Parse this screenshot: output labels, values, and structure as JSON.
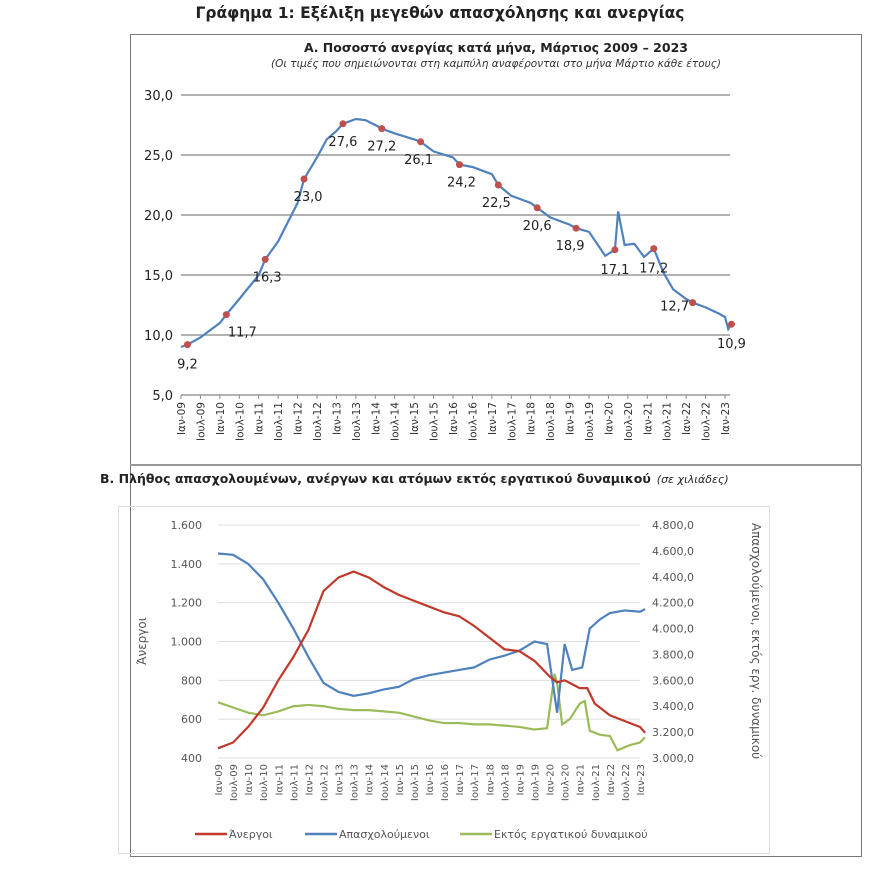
{
  "title": "Γράφημα 1: Εξέλιξη μεγεθών απασχόλησης και ανεργίας",
  "x_tick_labels": [
    "Ιαν-09",
    "Ιουλ-09",
    "Ιαν-10",
    "Ιουλ-10",
    "Ιαν-11",
    "Ιουλ-11",
    "Ιαν-12",
    "Ιουλ-12",
    "Ιαν-13",
    "Ιουλ-13",
    "Ιαν-14",
    "Ιουλ-14",
    "Ιαν-15",
    "Ιουλ-15",
    "Ιαν-16",
    "Ιουλ-16",
    "Ιαν-17",
    "Ιουλ-17",
    "Ιαν-18",
    "Ιουλ-18",
    "Ιαν-19",
    "Ιουλ-19",
    "Ιαν-20",
    "Ιουλ-20",
    "Ιαν-21",
    "Ιουλ-21",
    "Ιαν-22",
    "Ιουλ-22",
    "Ιαν-23"
  ],
  "chart_data": [
    {
      "type": "line",
      "title": "Α. Ποσοστό ανεργίας κατά μήνα, Μάρτιος 2009 – 2023",
      "subtitle": "(Οι τιμές που σημειώνονται στη καμπύλη αναφέρονται στο μήνα Μάρτιο κάθε έτους)",
      "ylim": [
        5,
        30
      ],
      "yticks": [
        "5,0",
        "10,0",
        "15,0",
        "20,0",
        "25,0",
        "30,0"
      ],
      "grid": true,
      "line_color": "#4f81bd",
      "marker_color": "#c0504d",
      "x": [
        "2009-01",
        "2009-03",
        "2009-07",
        "2010-01",
        "2010-03",
        "2010-07",
        "2011-01",
        "2011-03",
        "2011-07",
        "2012-01",
        "2012-03",
        "2012-07",
        "2012-10",
        "2013-01",
        "2013-03",
        "2013-07",
        "2013-10",
        "2014-01",
        "2014-03",
        "2014-07",
        "2015-01",
        "2015-03",
        "2015-07",
        "2016-01",
        "2016-03",
        "2016-07",
        "2017-01",
        "2017-03",
        "2017-07",
        "2018-01",
        "2018-03",
        "2018-07",
        "2019-01",
        "2019-03",
        "2019-07",
        "2019-12",
        "2020-03",
        "2020-04",
        "2020-06",
        "2020-09",
        "2020-12",
        "2021-03",
        "2021-06",
        "2021-09",
        "2022-01",
        "2022-03",
        "2022-07",
        "2022-11",
        "2023-01",
        "2023-02",
        "2023-03"
      ],
      "y": [
        9.0,
        9.2,
        9.8,
        11.0,
        11.7,
        13.0,
        15.0,
        16.3,
        17.8,
        21.0,
        23.0,
        24.8,
        26.3,
        27.0,
        27.6,
        28.0,
        27.9,
        27.5,
        27.2,
        26.8,
        26.3,
        26.1,
        25.3,
        24.8,
        24.2,
        24.0,
        23.4,
        22.5,
        21.6,
        21.0,
        20.6,
        19.8,
        19.2,
        18.9,
        18.6,
        16.6,
        17.1,
        20.3,
        17.5,
        17.6,
        16.5,
        17.2,
        15.2,
        13.8,
        13.0,
        12.7,
        12.3,
        11.8,
        11.5,
        10.5,
        10.9
      ],
      "markers": [
        {
          "x": "2009-03",
          "value": 9.2,
          "label": "9,2"
        },
        {
          "x": "2010-03",
          "value": 11.7,
          "label": "11,7"
        },
        {
          "x": "2011-03",
          "value": 16.3,
          "label": "16,3"
        },
        {
          "x": "2012-03",
          "value": 23.0,
          "label": "23,0"
        },
        {
          "x": "2013-03",
          "value": 27.6,
          "label": "27,6"
        },
        {
          "x": "2014-03",
          "value": 27.2,
          "label": "27,2"
        },
        {
          "x": "2015-03",
          "value": 26.1,
          "label": "26,1"
        },
        {
          "x": "2016-03",
          "value": 24.2,
          "label": "24,2"
        },
        {
          "x": "2017-03",
          "value": 22.5,
          "label": "22,5"
        },
        {
          "x": "2018-03",
          "value": 20.6,
          "label": "20,6"
        },
        {
          "x": "2019-03",
          "value": 18.9,
          "label": "18,9"
        },
        {
          "x": "2020-03",
          "value": 17.1,
          "label": "17,1"
        },
        {
          "x": "2021-03",
          "value": 17.2,
          "label": "17,2"
        },
        {
          "x": "2022-03",
          "value": 12.7,
          "label": "12,7"
        },
        {
          "x": "2023-03",
          "value": 10.9,
          "label": "10,9"
        }
      ]
    },
    {
      "type": "line",
      "title": "Β. Πλήθος απασχολουμένων, ανέργων και ατόμων εκτός εργατικού δυναμικού",
      "title_note": "(σε χιλιάδες)",
      "ylabel": "Άνεργοι",
      "ylabel_right": "Απασχολούμενοι, εκτός εργ. δυναμικού",
      "ylim": [
        400,
        1600
      ],
      "ylim_right": [
        3000,
        4800
      ],
      "yticks": [
        "400",
        "600",
        "800",
        "1.000",
        "1.200",
        "1.400",
        "1.600"
      ],
      "yticks_right": [
        "3.000,0",
        "3.200,0",
        "3.400,0",
        "3.600,0",
        "3.800,0",
        "4.000,0",
        "4.200,0",
        "4.400,0",
        "4.600,0",
        "4.800,0"
      ],
      "grid": true,
      "legend": "bottom",
      "series": [
        {
          "name": "Άνεργοι",
          "axis": "left",
          "color": "#c0392b",
          "x": [
            "2009-01",
            "2009-07",
            "2010-01",
            "2010-07",
            "2011-01",
            "2011-07",
            "2012-01",
            "2012-07",
            "2013-01",
            "2013-07",
            "2014-01",
            "2014-07",
            "2015-01",
            "2015-07",
            "2016-01",
            "2016-07",
            "2017-01",
            "2017-07",
            "2018-01",
            "2018-07",
            "2019-01",
            "2019-07",
            "2020-01",
            "2020-04",
            "2020-07",
            "2020-10",
            "2021-01",
            "2021-04",
            "2021-07",
            "2022-01",
            "2022-07",
            "2023-01",
            "2023-03"
          ],
          "y": [
            450,
            480,
            560,
            660,
            800,
            920,
            1060,
            1260,
            1330,
            1360,
            1330,
            1280,
            1240,
            1210,
            1180,
            1150,
            1130,
            1080,
            1020,
            960,
            950,
            900,
            820,
            790,
            800,
            780,
            760,
            760,
            680,
            620,
            590,
            560,
            530
          ]
        },
        {
          "name": "Απασχολούμενοι",
          "axis": "right",
          "color": "#4f81bd",
          "x": [
            "2009-01",
            "2009-07",
            "2010-01",
            "2010-07",
            "2011-01",
            "2011-07",
            "2012-01",
            "2012-07",
            "2013-01",
            "2013-07",
            "2014-01",
            "2014-07",
            "2015-01",
            "2015-07",
            "2016-01",
            "2016-07",
            "2017-01",
            "2017-07",
            "2018-01",
            "2018-07",
            "2019-01",
            "2019-07",
            "2019-12",
            "2020-04",
            "2020-07",
            "2020-10",
            "2021-02",
            "2021-05",
            "2021-09",
            "2022-01",
            "2022-07",
            "2023-01",
            "2023-03"
          ],
          "y": [
            4580,
            4570,
            4500,
            4380,
            4200,
            4000,
            3780,
            3580,
            3510,
            3480,
            3500,
            3530,
            3550,
            3610,
            3640,
            3660,
            3680,
            3700,
            3760,
            3790,
            3830,
            3900,
            3880,
            3350,
            3880,
            3680,
            3700,
            4000,
            4070,
            4120,
            4140,
            4130,
            4150
          ]
        },
        {
          "name": "Εκτός εργατικού δυναμικού",
          "axis": "right",
          "color": "#9bbb59",
          "x": [
            "2009-01",
            "2009-07",
            "2010-01",
            "2010-07",
            "2011-01",
            "2011-07",
            "2012-01",
            "2012-07",
            "2013-01",
            "2013-07",
            "2014-01",
            "2014-07",
            "2015-01",
            "2015-07",
            "2016-01",
            "2016-07",
            "2017-01",
            "2017-07",
            "2018-01",
            "2018-07",
            "2019-01",
            "2019-07",
            "2019-12",
            "2020-03",
            "2020-04",
            "2020-06",
            "2020-09",
            "2021-01",
            "2021-03",
            "2021-05",
            "2021-09",
            "2022-01",
            "2022-04",
            "2022-09",
            "2023-01",
            "2023-03"
          ],
          "y": [
            3430,
            3390,
            3350,
            3330,
            3360,
            3400,
            3410,
            3400,
            3380,
            3370,
            3370,
            3360,
            3350,
            3320,
            3290,
            3270,
            3270,
            3260,
            3260,
            3250,
            3240,
            3220,
            3230,
            3650,
            3580,
            3260,
            3300,
            3420,
            3440,
            3210,
            3180,
            3170,
            3060,
            3100,
            3120,
            3160
          ]
        }
      ]
    }
  ]
}
